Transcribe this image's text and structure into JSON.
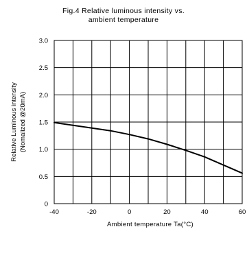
{
  "title_line1": "Fig.4 Relative luminous intensity vs.",
  "title_line2": "ambient temperature",
  "chart_data": {
    "type": "line",
    "title": "Fig.4 Relative luminous intensity vs. ambient temperature",
    "xlabel_prefix": "Ambient temperature Ta(",
    "xlabel_unit": "°C)",
    "ylabel_line1": "Relative Luminous intensity",
    "ylabel_line2": "(Nomalized @20mA)",
    "xlim": [
      -40,
      60
    ],
    "ylim": [
      0,
      3.0
    ],
    "x_ticks": [
      -40,
      -20,
      0,
      20,
      40,
      60
    ],
    "x_tick_labels": [
      "-40",
      "-20",
      "0",
      "20",
      "40",
      "60"
    ],
    "y_ticks": [
      0,
      0.5,
      1.0,
      1.5,
      2.0,
      2.5,
      3.0
    ],
    "y_tick_labels": [
      "0",
      "0.5",
      "1.0",
      "1.5",
      "2.0",
      "2.5",
      "3.0"
    ],
    "grid_x": [
      -40,
      -30,
      -20,
      -10,
      0,
      10,
      20,
      30,
      40,
      50,
      60
    ],
    "grid_y": [
      0,
      0.5,
      1.0,
      1.5,
      2.0,
      2.5,
      3.0
    ],
    "grid": true,
    "series": [
      {
        "x": [
          -40,
          -30,
          -20,
          -10,
          0,
          10,
          20,
          30,
          40,
          50,
          60
        ],
        "y": [
          1.49,
          1.44,
          1.39,
          1.34,
          1.27,
          1.19,
          1.09,
          0.98,
          0.86,
          0.71,
          0.56
        ]
      }
    ],
    "line_color": "#000000"
  }
}
